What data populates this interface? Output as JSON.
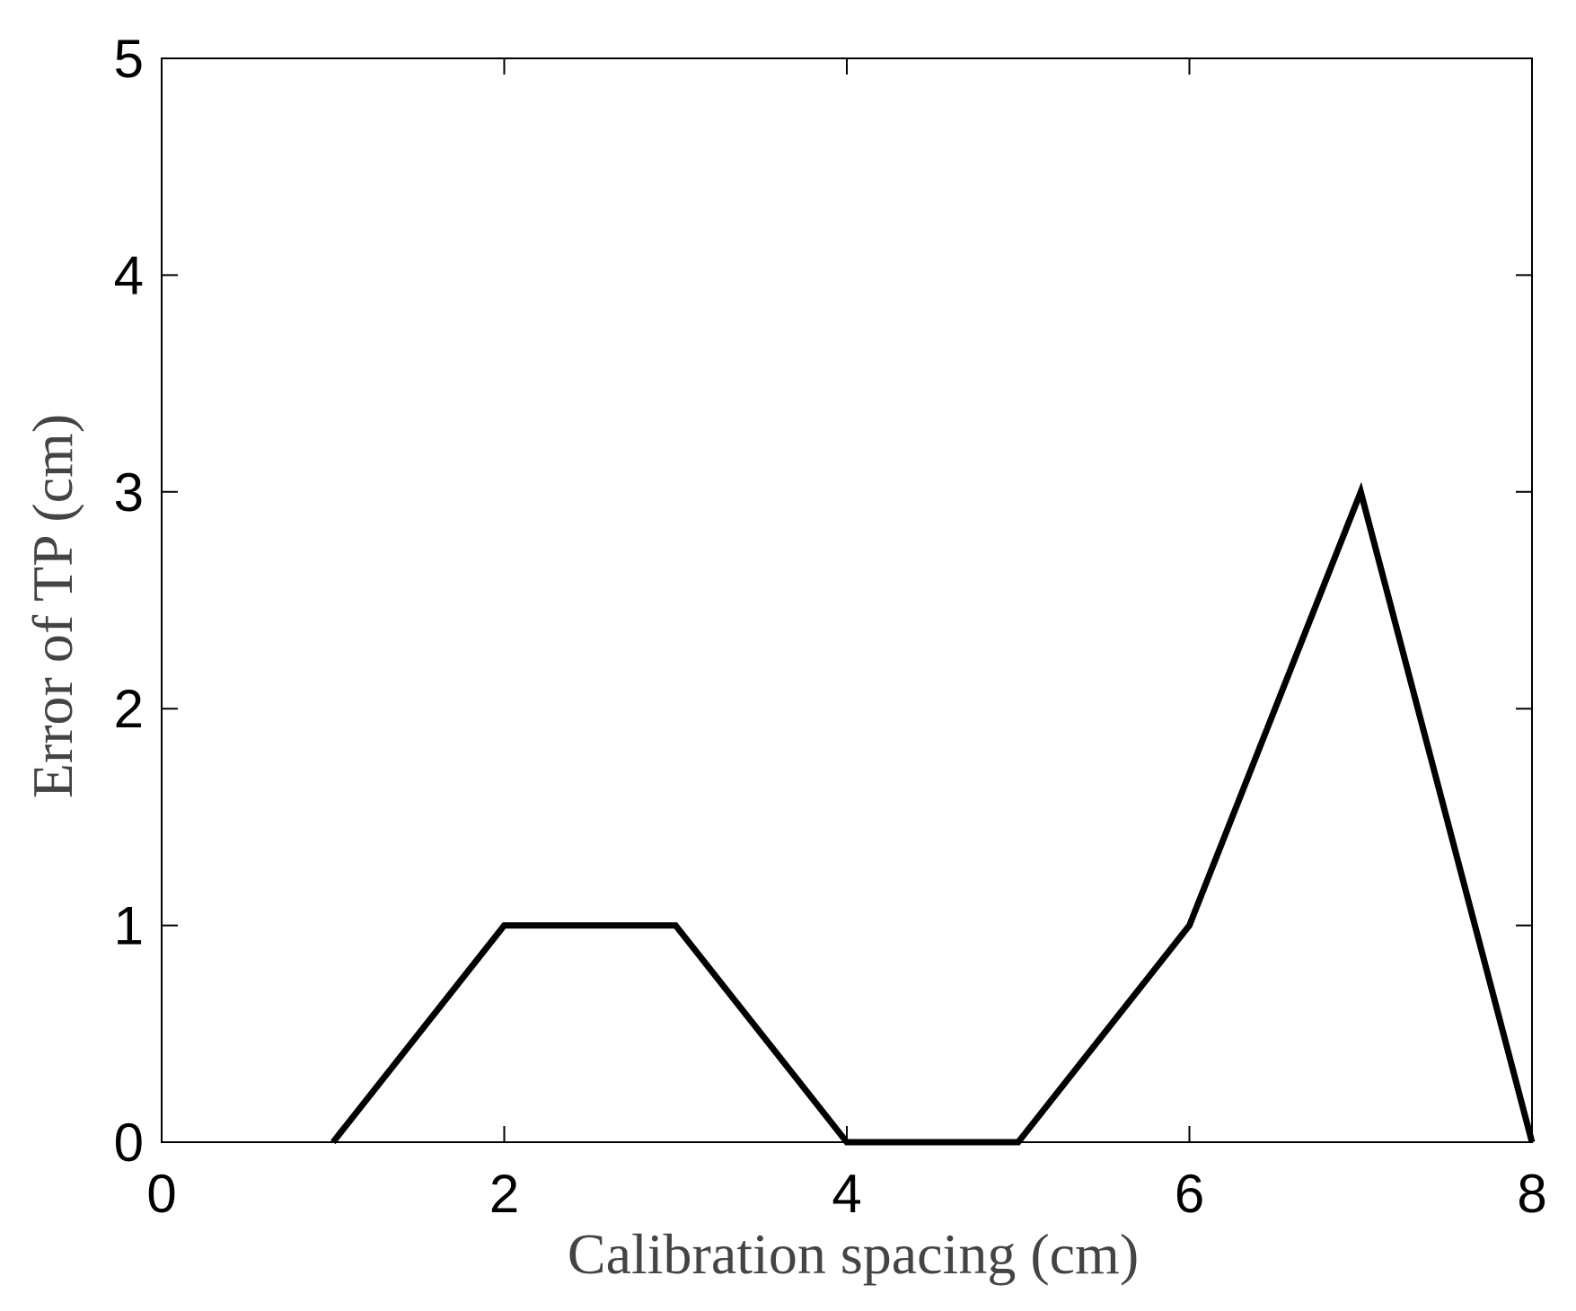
{
  "chart_data": {
    "type": "line",
    "title": "",
    "xlabel": "Calibration spacing (cm)",
    "ylabel": "Error of TP (cm)",
    "xlim": [
      0,
      8
    ],
    "ylim": [
      0,
      5
    ],
    "xticks": [
      0,
      2,
      4,
      6,
      8
    ],
    "yticks": [
      0,
      1,
      2,
      3,
      4,
      5
    ],
    "xtick_labels": [
      "0",
      "2",
      "4",
      "6",
      "8"
    ],
    "ytick_labels": [
      "0",
      "1",
      "2",
      "3",
      "4",
      "5"
    ],
    "grid": false,
    "legend": "none",
    "series": [
      {
        "x": [
          1,
          2,
          3,
          4,
          5,
          6,
          7,
          8
        ],
        "values": [
          0,
          1,
          1,
          0,
          0,
          1,
          3,
          0
        ],
        "color": "#000000"
      }
    ]
  },
  "colors": {
    "line": "#000000",
    "axis": "#000000",
    "axis_title": "#444444"
  }
}
